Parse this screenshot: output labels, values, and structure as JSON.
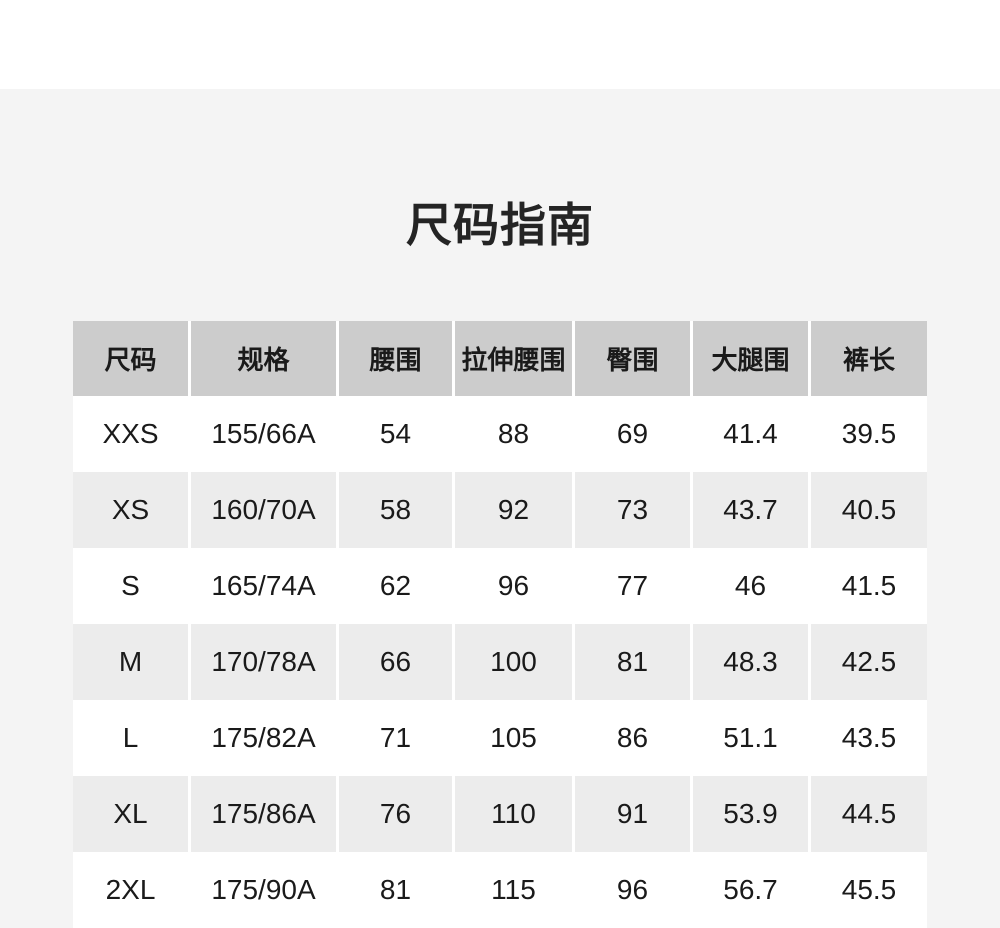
{
  "page": {
    "title": "尺码指南"
  },
  "colors": {
    "page_background": "#f4f4f4",
    "top_strip": "#ffffff",
    "table_header_bg": "#cccccc",
    "table_row_bg": "#ffffff",
    "table_row_alt_bg": "#ececec",
    "cell_separator": "#ffffff",
    "text": "#1a1a1a"
  },
  "size_table": {
    "columns": [
      "尺码",
      "规格",
      "腰围",
      "拉伸腰围",
      "臀围",
      "大腿围",
      "裤长"
    ],
    "rows": [
      [
        "XXS",
        "155/66A",
        "54",
        "88",
        "69",
        "41.4",
        "39.5"
      ],
      [
        "XS",
        "160/70A",
        "58",
        "92",
        "73",
        "43.7",
        "40.5"
      ],
      [
        "S",
        "165/74A",
        "62",
        "96",
        "77",
        "46",
        "41.5"
      ],
      [
        "M",
        "170/78A",
        "66",
        "100",
        "81",
        "48.3",
        "42.5"
      ],
      [
        "L",
        "175/82A",
        "71",
        "105",
        "86",
        "51.1",
        "43.5"
      ],
      [
        "XL",
        "175/86A",
        "76",
        "110",
        "91",
        "53.9",
        "44.5"
      ],
      [
        "2XL",
        "175/90A",
        "81",
        "115",
        "96",
        "56.7",
        "45.5"
      ]
    ]
  }
}
